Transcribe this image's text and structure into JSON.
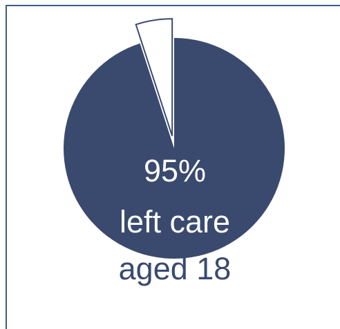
{
  "chart_data": {
    "type": "pie",
    "slices": [
      {
        "label": "left care aged 18",
        "value": 95
      },
      {
        "label": "",
        "value": 5
      }
    ],
    "labels": {
      "line1": "95%",
      "line2": "left care",
      "line3": "aged 18"
    },
    "colors": {
      "main": "#3a4a6e",
      "rest": "#ffffff",
      "text_inside": "#ffffff",
      "text_outside": "#3a4a6e",
      "frame": "#3b5a8a"
    }
  }
}
